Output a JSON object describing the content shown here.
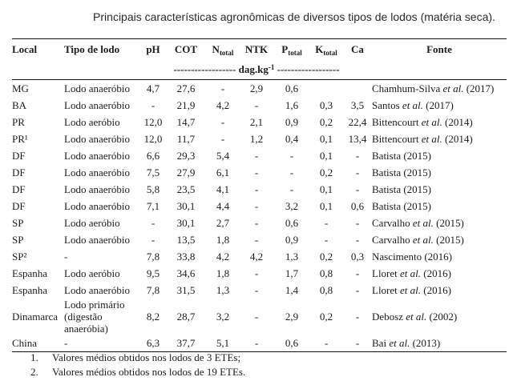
{
  "caption": "Principais características agronômicas de diversos tipos de lodos (matéria seca).",
  "table": {
    "headers": {
      "local": "Local",
      "tipo": "Tipo de lodo",
      "ph": "pH",
      "cot": "COT",
      "n": {
        "main": "N",
        "sub": "total"
      },
      "ntk": "NTK",
      "p": {
        "main": "P",
        "sub": "total"
      },
      "k": {
        "main": "K",
        "sub": "total"
      },
      "ca": "Ca",
      "fonte": "Fonte"
    },
    "units": {
      "pre": "------------------ dag.kg",
      "sup": "-1",
      "post": " ------------------"
    },
    "value_columns": [
      "pH",
      "COT",
      "Ntotal",
      "NTK",
      "Ptotal",
      "Ktotal",
      "Ca"
    ],
    "rows": [
      {
        "local": "MG",
        "tipo": "Lodo anaeróbio",
        "values": [
          "4,7",
          "27,6",
          "-",
          "2,9",
          "0,6",
          "",
          ""
        ],
        "fonte": [
          {
            "t": "Chamhum-Silva "
          },
          {
            "t": "et al.",
            "i": true
          },
          {
            "t": " (2017)"
          }
        ]
      },
      {
        "local": "BA",
        "tipo": "Lodo anaeróbio",
        "values": [
          "-",
          "21,9",
          "4,2",
          "-",
          "1,6",
          "0,3",
          "3,5"
        ],
        "fonte": [
          {
            "t": "Santos "
          },
          {
            "t": "et al.",
            "i": true
          },
          {
            "t": " (2017)"
          }
        ]
      },
      {
        "local": "PR",
        "tipo": "Lodo aeróbio",
        "values": [
          "12,0",
          "14,7",
          "-",
          "2,1",
          "0,9",
          "0,2",
          "22,4"
        ],
        "fonte": [
          {
            "t": "Bittencourt "
          },
          {
            "t": "et al.",
            "i": true
          },
          {
            "t": " (2014)"
          }
        ]
      },
      {
        "local": "PR¹",
        "tipo": "Lodo anaeróbio",
        "values": [
          "12,0",
          "11,7",
          "-",
          "1,2",
          "0,4",
          "0,1",
          "13,4"
        ],
        "fonte": [
          {
            "t": "Bittencourt "
          },
          {
            "t": "et al.",
            "i": true
          },
          {
            "t": " (2014)"
          }
        ]
      },
      {
        "local": "DF",
        "tipo": "Lodo anaeróbio",
        "values": [
          "6,6",
          "29,3",
          "5,4",
          "-",
          "-",
          "0,1",
          "-"
        ],
        "fonte": [
          {
            "t": "Batista (2015)"
          }
        ]
      },
      {
        "local": "DF",
        "tipo": "Lodo anaeróbio",
        "values": [
          "7,5",
          "27,9",
          "6,1",
          "-",
          "-",
          "0,2",
          "-"
        ],
        "fonte": [
          {
            "t": "Batista (2015)"
          }
        ]
      },
      {
        "local": "DF",
        "tipo": "Lodo anaeróbio",
        "values": [
          "5,8",
          "23,5",
          "4,1",
          "-",
          "-",
          "0,1",
          "-"
        ],
        "fonte": [
          {
            "t": "Batista (2015)"
          }
        ]
      },
      {
        "local": "DF",
        "tipo": "Lodo anaeróbio",
        "values": [
          "7,1",
          "30,1",
          "4,4",
          "-",
          "3,2",
          "0,1",
          "0,6"
        ],
        "fonte": [
          {
            "t": "Batista (2015)"
          }
        ]
      },
      {
        "local": "SP",
        "tipo": "Lodo aeróbio",
        "values": [
          "-",
          "30,1",
          "2,7",
          "-",
          "0,6",
          "-",
          "-"
        ],
        "fonte": [
          {
            "t": "Carvalho "
          },
          {
            "t": "et al.",
            "i": true
          },
          {
            "t": " (2015)"
          }
        ]
      },
      {
        "local": "SP",
        "tipo": "Lodo anaeróbio",
        "values": [
          "-",
          "13,5",
          "1,8",
          "-",
          "0,9",
          "-",
          "-"
        ],
        "fonte": [
          {
            "t": "Carvalho "
          },
          {
            "t": "et al.",
            "i": true
          },
          {
            "t": " (2015)"
          }
        ]
      },
      {
        "local": "SP²",
        "tipo": "-",
        "values": [
          "7,8",
          "33,8",
          "4,2",
          "4,2",
          "1,3",
          "0,2",
          "0,3"
        ],
        "fonte": [
          {
            "t": "Nascimento (2016)"
          }
        ]
      },
      {
        "local": "Espanha",
        "tipo": "Lodo aeróbio",
        "values": [
          "9,5",
          "34,6",
          "1,8",
          "-",
          "1,7",
          "0,8",
          "-"
        ],
        "fonte": [
          {
            "t": "Lloret "
          },
          {
            "t": "et al.",
            "i": true
          },
          {
            "t": " (2016)"
          }
        ]
      },
      {
        "local": "Espanha",
        "tipo": "Lodo anaeróbio",
        "values": [
          "7,8",
          "31,5",
          "1,3",
          "-",
          "1,4",
          "0,8",
          "-"
        ],
        "fonte": [
          {
            "t": "Lloret "
          },
          {
            "t": "et al.",
            "i": true
          },
          {
            "t": " (2016)"
          }
        ]
      },
      {
        "local": "Dinamarca",
        "tipo": "Lodo primário (digestão anaeróbia)",
        "values": [
          "8,2",
          "28,7",
          "3,2",
          "-",
          "2,9",
          "0,2",
          "-"
        ],
        "fonte": [
          {
            "t": "Debosz "
          },
          {
            "t": "et al.",
            "i": true
          },
          {
            "t": " (2002)"
          }
        ]
      },
      {
        "local": "China",
        "tipo": "-",
        "values": [
          "6,3",
          "37,7",
          "5,1",
          "-",
          "0,6",
          "-",
          "-"
        ],
        "fonte": [
          {
            "t": "Bai "
          },
          {
            "t": "et al.",
            "i": true
          },
          {
            "t": " (2013)"
          }
        ]
      }
    ]
  },
  "footnotes": [
    {
      "num": "1.",
      "text": "Valores médios obtidos nos lodos de 3 ETEs;"
    },
    {
      "num": "2.",
      "text": "Valores médios obtidos nos lodos de 19 ETEs."
    }
  ]
}
